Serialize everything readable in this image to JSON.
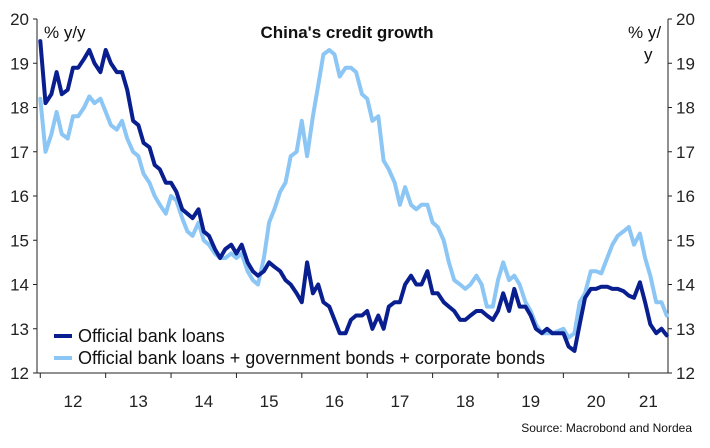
{
  "chart_data": {
    "type": "line",
    "title": "China's credit growth",
    "ylabel_left": "% y/y",
    "ylabel_right": "% y/ y",
    "ylim": [
      12,
      20
    ],
    "xlim": [
      2011.95,
      2021.6
    ],
    "x_tick_labels": [
      "12",
      "13",
      "14",
      "15",
      "16",
      "17",
      "18",
      "19",
      "20",
      "21"
    ],
    "y_ticks": [
      12,
      13,
      14,
      15,
      16,
      17,
      18,
      19,
      20
    ],
    "grid": false,
    "legend_position": "bottom-left",
    "source": "Source: Macrobond and Nordea",
    "series": [
      {
        "name": "Official bank loans",
        "color": "#0a1f8f",
        "points": [
          [
            2012.0,
            19.5
          ],
          [
            2012.08,
            18.1
          ],
          [
            2012.17,
            18.3
          ],
          [
            2012.25,
            18.8
          ],
          [
            2012.33,
            18.3
          ],
          [
            2012.42,
            18.4
          ],
          [
            2012.5,
            18.9
          ],
          [
            2012.58,
            18.9
          ],
          [
            2012.67,
            19.1
          ],
          [
            2012.75,
            19.3
          ],
          [
            2012.83,
            19.0
          ],
          [
            2012.92,
            18.8
          ],
          [
            2013.0,
            19.3
          ],
          [
            2013.08,
            19.0
          ],
          [
            2013.17,
            18.8
          ],
          [
            2013.25,
            18.8
          ],
          [
            2013.33,
            18.4
          ],
          [
            2013.42,
            17.7
          ],
          [
            2013.5,
            17.6
          ],
          [
            2013.58,
            17.2
          ],
          [
            2013.67,
            17.1
          ],
          [
            2013.75,
            16.7
          ],
          [
            2013.83,
            16.6
          ],
          [
            2013.92,
            16.3
          ],
          [
            2014.0,
            16.3
          ],
          [
            2014.08,
            16.1
          ],
          [
            2014.17,
            15.7
          ],
          [
            2014.25,
            15.6
          ],
          [
            2014.33,
            15.5
          ],
          [
            2014.42,
            15.7
          ],
          [
            2014.5,
            15.2
          ],
          [
            2014.58,
            15.1
          ],
          [
            2014.67,
            14.8
          ],
          [
            2014.75,
            14.6
          ],
          [
            2014.83,
            14.8
          ],
          [
            2014.92,
            14.9
          ],
          [
            2015.0,
            14.7
          ],
          [
            2015.08,
            14.9
          ],
          [
            2015.17,
            14.5
          ],
          [
            2015.25,
            14.3
          ],
          [
            2015.33,
            14.2
          ],
          [
            2015.42,
            14.3
          ],
          [
            2015.5,
            14.5
          ],
          [
            2015.58,
            14.4
          ],
          [
            2015.67,
            14.3
          ],
          [
            2015.75,
            14.1
          ],
          [
            2015.83,
            14.0
          ],
          [
            2015.92,
            13.8
          ],
          [
            2016.0,
            13.6
          ],
          [
            2016.08,
            14.5
          ],
          [
            2016.17,
            13.8
          ],
          [
            2016.25,
            14.0
          ],
          [
            2016.33,
            13.6
          ],
          [
            2016.42,
            13.5
          ],
          [
            2016.5,
            13.2
          ],
          [
            2016.58,
            12.9
          ],
          [
            2016.67,
            12.9
          ],
          [
            2016.75,
            13.2
          ],
          [
            2016.83,
            13.3
          ],
          [
            2016.92,
            13.3
          ],
          [
            2017.0,
            13.4
          ],
          [
            2017.08,
            13.0
          ],
          [
            2017.17,
            13.3
          ],
          [
            2017.25,
            13.0
          ],
          [
            2017.33,
            13.5
          ],
          [
            2017.42,
            13.6
          ],
          [
            2017.5,
            13.6
          ],
          [
            2017.58,
            14.0
          ],
          [
            2017.67,
            14.2
          ],
          [
            2017.75,
            14.0
          ],
          [
            2017.83,
            14.0
          ],
          [
            2017.92,
            14.3
          ],
          [
            2018.0,
            13.8
          ],
          [
            2018.08,
            13.8
          ],
          [
            2018.17,
            13.6
          ],
          [
            2018.25,
            13.5
          ],
          [
            2018.33,
            13.4
          ],
          [
            2018.42,
            13.2
          ],
          [
            2018.5,
            13.2
          ],
          [
            2018.58,
            13.3
          ],
          [
            2018.67,
            13.4
          ],
          [
            2018.75,
            13.4
          ],
          [
            2018.83,
            13.3
          ],
          [
            2018.92,
            13.2
          ],
          [
            2019.0,
            13.4
          ],
          [
            2019.08,
            13.8
          ],
          [
            2019.17,
            13.4
          ],
          [
            2019.25,
            13.9
          ],
          [
            2019.33,
            13.5
          ],
          [
            2019.42,
            13.5
          ],
          [
            2019.5,
            13.3
          ],
          [
            2019.58,
            13.0
          ],
          [
            2019.67,
            12.9
          ],
          [
            2019.75,
            13.0
          ],
          [
            2019.83,
            12.9
          ],
          [
            2019.92,
            12.9
          ],
          [
            2020.0,
            12.9
          ],
          [
            2020.08,
            12.6
          ],
          [
            2020.17,
            12.5
          ],
          [
            2020.25,
            13.1
          ],
          [
            2020.33,
            13.7
          ],
          [
            2020.42,
            13.9
          ],
          [
            2020.5,
            13.9
          ],
          [
            2020.58,
            13.95
          ],
          [
            2020.67,
            13.95
          ],
          [
            2020.75,
            13.9
          ],
          [
            2020.83,
            13.9
          ],
          [
            2020.92,
            13.85
          ],
          [
            2021.0,
            13.75
          ],
          [
            2021.08,
            13.7
          ],
          [
            2021.17,
            14.05
          ],
          [
            2021.25,
            13.6
          ],
          [
            2021.33,
            13.1
          ],
          [
            2021.42,
            12.9
          ],
          [
            2021.5,
            13.0
          ],
          [
            2021.58,
            12.85
          ]
        ]
      },
      {
        "name": "Official bank loans + government bonds + corporate bonds",
        "color": "#8cc6f5",
        "points": [
          [
            2012.0,
            18.2
          ],
          [
            2012.08,
            17.0
          ],
          [
            2012.17,
            17.4
          ],
          [
            2012.25,
            17.9
          ],
          [
            2012.33,
            17.4
          ],
          [
            2012.42,
            17.3
          ],
          [
            2012.5,
            17.8
          ],
          [
            2012.58,
            17.8
          ],
          [
            2012.67,
            18.0
          ],
          [
            2012.75,
            18.25
          ],
          [
            2012.83,
            18.1
          ],
          [
            2012.92,
            18.2
          ],
          [
            2013.0,
            17.9
          ],
          [
            2013.08,
            17.6
          ],
          [
            2013.17,
            17.5
          ],
          [
            2013.25,
            17.7
          ],
          [
            2013.33,
            17.3
          ],
          [
            2013.42,
            17.0
          ],
          [
            2013.5,
            16.9
          ],
          [
            2013.58,
            16.5
          ],
          [
            2013.67,
            16.3
          ],
          [
            2013.75,
            16.0
          ],
          [
            2013.83,
            15.8
          ],
          [
            2013.92,
            15.6
          ],
          [
            2014.0,
            16.0
          ],
          [
            2014.08,
            15.9
          ],
          [
            2014.17,
            15.5
          ],
          [
            2014.25,
            15.2
          ],
          [
            2014.33,
            15.1
          ],
          [
            2014.42,
            15.4
          ],
          [
            2014.5,
            15.0
          ],
          [
            2014.58,
            14.9
          ],
          [
            2014.67,
            14.7
          ],
          [
            2014.75,
            14.6
          ],
          [
            2014.83,
            14.6
          ],
          [
            2014.92,
            14.7
          ],
          [
            2015.0,
            14.6
          ],
          [
            2015.08,
            14.7
          ],
          [
            2015.17,
            14.3
          ],
          [
            2015.25,
            14.1
          ],
          [
            2015.33,
            14.0
          ],
          [
            2015.42,
            14.6
          ],
          [
            2015.5,
            15.4
          ],
          [
            2015.58,
            15.7
          ],
          [
            2015.67,
            16.1
          ],
          [
            2015.75,
            16.3
          ],
          [
            2015.83,
            16.9
          ],
          [
            2015.92,
            17.0
          ],
          [
            2016.0,
            17.7
          ],
          [
            2016.08,
            16.9
          ],
          [
            2016.17,
            17.8
          ],
          [
            2016.25,
            18.5
          ],
          [
            2016.33,
            19.2
          ],
          [
            2016.42,
            19.3
          ],
          [
            2016.5,
            19.2
          ],
          [
            2016.58,
            18.7
          ],
          [
            2016.67,
            18.9
          ],
          [
            2016.75,
            18.9
          ],
          [
            2016.83,
            18.8
          ],
          [
            2016.92,
            18.3
          ],
          [
            2017.0,
            18.2
          ],
          [
            2017.08,
            17.7
          ],
          [
            2017.17,
            17.8
          ],
          [
            2017.25,
            16.8
          ],
          [
            2017.33,
            16.6
          ],
          [
            2017.42,
            16.3
          ],
          [
            2017.5,
            15.8
          ],
          [
            2017.58,
            16.2
          ],
          [
            2017.67,
            15.8
          ],
          [
            2017.75,
            15.7
          ],
          [
            2017.83,
            15.8
          ],
          [
            2017.92,
            15.8
          ],
          [
            2018.0,
            15.4
          ],
          [
            2018.08,
            15.3
          ],
          [
            2018.17,
            15.0
          ],
          [
            2018.25,
            14.5
          ],
          [
            2018.33,
            14.1
          ],
          [
            2018.42,
            14.0
          ],
          [
            2018.5,
            13.9
          ],
          [
            2018.58,
            14.0
          ],
          [
            2018.67,
            14.2
          ],
          [
            2018.75,
            14.0
          ],
          [
            2018.83,
            13.5
          ],
          [
            2018.92,
            13.5
          ],
          [
            2019.0,
            14.1
          ],
          [
            2019.08,
            14.5
          ],
          [
            2019.17,
            14.1
          ],
          [
            2019.25,
            14.2
          ],
          [
            2019.33,
            14.0
          ],
          [
            2019.42,
            13.6
          ],
          [
            2019.5,
            13.4
          ],
          [
            2019.58,
            13.1
          ],
          [
            2019.67,
            12.9
          ],
          [
            2019.75,
            12.9
          ],
          [
            2019.83,
            12.9
          ],
          [
            2019.92,
            12.95
          ],
          [
            2020.0,
            13.0
          ],
          [
            2020.08,
            12.8
          ],
          [
            2020.17,
            12.9
          ],
          [
            2020.25,
            13.6
          ],
          [
            2020.33,
            13.8
          ],
          [
            2020.42,
            14.3
          ],
          [
            2020.5,
            14.3
          ],
          [
            2020.58,
            14.25
          ],
          [
            2020.67,
            14.6
          ],
          [
            2020.75,
            14.9
          ],
          [
            2020.83,
            15.1
          ],
          [
            2020.92,
            15.2
          ],
          [
            2021.0,
            15.3
          ],
          [
            2021.08,
            14.9
          ],
          [
            2021.17,
            15.15
          ],
          [
            2021.25,
            14.6
          ],
          [
            2021.33,
            14.2
          ],
          [
            2021.42,
            13.6
          ],
          [
            2021.5,
            13.6
          ],
          [
            2021.58,
            13.3
          ]
        ]
      }
    ]
  }
}
